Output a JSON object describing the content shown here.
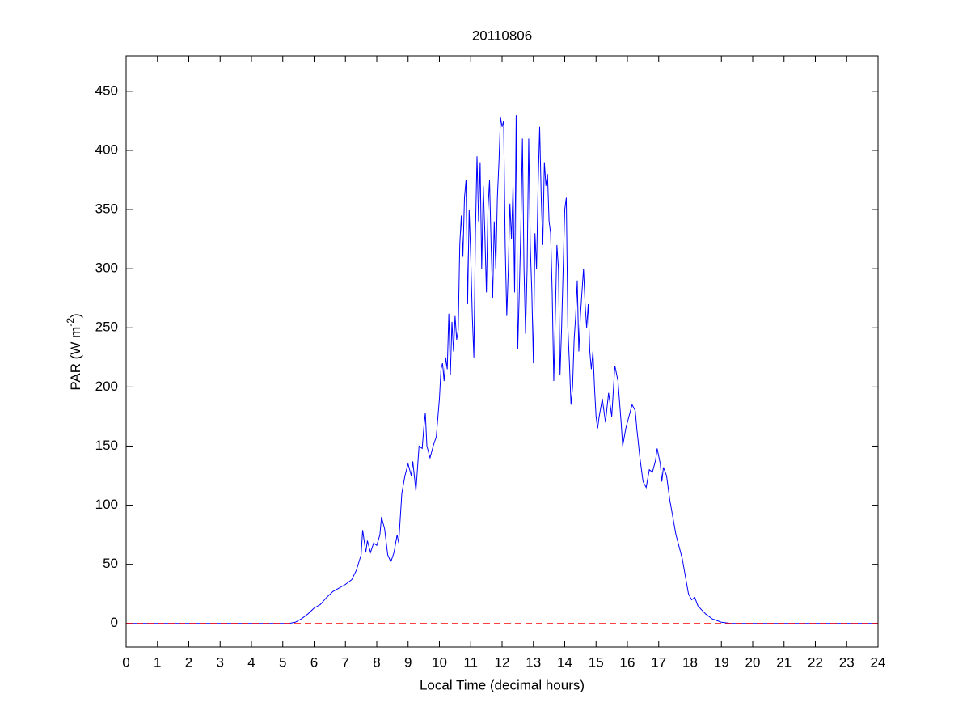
{
  "chart_data": {
    "type": "line",
    "title": "20110806",
    "xlabel": "Local Time (decimal hours)",
    "ylabel": [
      "PAR (W m",
      "-2",
      ")"
    ],
    "xlim": [
      0,
      24
    ],
    "ylim": [
      -20,
      480
    ],
    "xticks": [
      0,
      1,
      2,
      3,
      4,
      5,
      6,
      7,
      8,
      9,
      10,
      11,
      12,
      13,
      14,
      15,
      16,
      17,
      18,
      19,
      20,
      21,
      22,
      23,
      24
    ],
    "yticks": [
      0,
      50,
      100,
      150,
      200,
      250,
      300,
      350,
      400,
      450
    ],
    "grid": false,
    "series": [
      {
        "color": "#0000ff",
        "dashed": false,
        "x": [
          0,
          5.2,
          5.4,
          5.6,
          5.8,
          6.0,
          6.2,
          6.4,
          6.6,
          6.8,
          7.0,
          7.2,
          7.35,
          7.5,
          7.55,
          7.65,
          7.7,
          7.8,
          7.9,
          8.0,
          8.1,
          8.15,
          8.25,
          8.35,
          8.45,
          8.55,
          8.65,
          8.7,
          8.8,
          8.9,
          9.0,
          9.1,
          9.15,
          9.25,
          9.35,
          9.45,
          9.5,
          9.55,
          9.6,
          9.7,
          9.8,
          9.9,
          10.0,
          10.05,
          10.1,
          10.15,
          10.2,
          10.25,
          10.3,
          10.35,
          10.4,
          10.45,
          10.5,
          10.55,
          10.6,
          10.65,
          10.7,
          10.75,
          10.8,
          10.85,
          10.9,
          10.95,
          11.0,
          11.05,
          11.1,
          11.15,
          11.2,
          11.25,
          11.3,
          11.35,
          11.4,
          11.45,
          11.5,
          11.55,
          11.6,
          11.65,
          11.7,
          11.75,
          11.8,
          11.85,
          11.9,
          11.95,
          12.0,
          12.05,
          12.1,
          12.15,
          12.2,
          12.25,
          12.3,
          12.35,
          12.4,
          12.45,
          12.5,
          12.55,
          12.6,
          12.65,
          12.7,
          12.75,
          12.8,
          12.85,
          12.9,
          12.95,
          13.0,
          13.05,
          13.1,
          13.15,
          13.2,
          13.25,
          13.3,
          13.35,
          13.4,
          13.45,
          13.5,
          13.55,
          13.6,
          13.65,
          13.7,
          13.75,
          13.8,
          13.85,
          13.9,
          13.95,
          14.0,
          14.05,
          14.1,
          14.15,
          14.2,
          14.25,
          14.3,
          14.35,
          14.4,
          14.45,
          14.5,
          14.55,
          14.6,
          14.65,
          14.7,
          14.75,
          14.8,
          14.85,
          14.9,
          14.95,
          15.0,
          15.05,
          15.1,
          15.2,
          15.3,
          15.4,
          15.5,
          15.6,
          15.7,
          15.8,
          15.85,
          15.95,
          16.05,
          16.15,
          16.25,
          16.3,
          16.4,
          16.5,
          16.6,
          16.7,
          16.8,
          16.9,
          16.95,
          17.05,
          17.1,
          17.15,
          17.25,
          17.35,
          17.45,
          17.55,
          17.65,
          17.75,
          17.85,
          17.95,
          18.05,
          18.15,
          18.25,
          18.35,
          18.5,
          18.7,
          19.0,
          19.3,
          24
        ],
        "values": [
          0,
          0,
          1,
          4,
          8,
          13,
          16,
          22,
          27,
          30,
          33,
          37,
          45,
          58,
          79,
          60,
          70,
          60,
          68,
          66,
          75,
          90,
          80,
          58,
          52,
          60,
          75,
          68,
          110,
          125,
          135,
          125,
          137,
          112,
          150,
          148,
          165,
          178,
          150,
          140,
          150,
          158,
          190,
          215,
          220,
          205,
          225,
          215,
          262,
          210,
          255,
          230,
          260,
          240,
          248,
          320,
          345,
          310,
          360,
          375,
          270,
          350,
          310,
          260,
          225,
          330,
          395,
          340,
          390,
          300,
          370,
          330,
          280,
          350,
          375,
          320,
          275,
          340,
          300,
          360,
          390,
          428,
          420,
          425,
          320,
          260,
          300,
          355,
          325,
          370,
          280,
          430,
          232,
          280,
          335,
          410,
          300,
          245,
          300,
          410,
          320,
          280,
          220,
          330,
          300,
          370,
          420,
          360,
          320,
          390,
          370,
          380,
          340,
          330,
          280,
          205,
          260,
          320,
          300,
          210,
          250,
          300,
          350,
          360,
          250,
          220,
          185,
          200,
          240,
          260,
          290,
          230,
          260,
          280,
          300,
          270,
          250,
          270,
          230,
          215,
          230,
          200,
          175,
          165,
          175,
          190,
          170,
          195,
          175,
          218,
          205,
          170,
          150,
          165,
          175,
          185,
          180,
          165,
          140,
          120,
          115,
          130,
          128,
          138,
          148,
          135,
          120,
          132,
          125,
          105,
          90,
          75,
          65,
          55,
          40,
          25,
          20,
          22,
          15,
          12,
          8,
          4,
          1,
          0,
          0
        ]
      },
      {
        "color": "#ff0000",
        "dashed": true,
        "x": [
          0,
          24
        ],
        "values": [
          0,
          0
        ]
      }
    ]
  }
}
